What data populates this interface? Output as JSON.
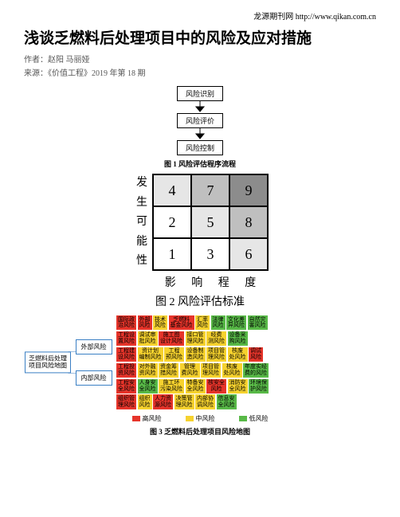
{
  "top_link": "龙源期刊网 http://www.qikan.com.cn",
  "title": "浅谈乏燃料后处理项目中的风险及应对措施",
  "author_line": "作者：赵阳 马丽娅",
  "source_line": "来源：《价值工程》2019 年第 18 期",
  "fig1": {
    "boxes": [
      "风险识别",
      "风险评价",
      "风险控制"
    ],
    "caption": "图 1 风险评估程序流程"
  },
  "fig2": {
    "ylabel": [
      "发",
      "生",
      "可",
      "能",
      "性"
    ],
    "xlabel": "影 响 程 度",
    "cells": [
      {
        "v": "4",
        "bg": "#e6e6e6"
      },
      {
        "v": "7",
        "bg": "#bfbfbf"
      },
      {
        "v": "9",
        "bg": "#8c8c8c"
      },
      {
        "v": "2",
        "bg": "#ffffff"
      },
      {
        "v": "5",
        "bg": "#e6e6e6"
      },
      {
        "v": "8",
        "bg": "#bfbfbf"
      },
      {
        "v": "1",
        "bg": "#ffffff"
      },
      {
        "v": "3",
        "bg": "#ffffff"
      },
      {
        "v": "6",
        "bg": "#e6e6e6"
      }
    ],
    "caption": "图 2  风险评估标准"
  },
  "fig3": {
    "root": "乏燃料后处理\n项目风险地图",
    "branches": [
      "外部风险",
      "内部风险"
    ],
    "risk_colors": {
      "hi": "#e6342a",
      "mid": "#f6d22e",
      "low": "#58b947"
    },
    "rows": [
      [
        {
          "t": "国际政\n治风险",
          "c": "hi"
        },
        {
          "t": "外部\n风险",
          "c": "hi"
        },
        {
          "t": "技术\n风险",
          "c": "mid"
        },
        {
          "t": "乏燃料\n基金风险",
          "c": "hi"
        },
        {
          "t": "汇率\n风险",
          "c": "mid"
        },
        {
          "t": "法律\n风险",
          "c": "low"
        },
        {
          "t": "文化差\n异风险",
          "c": "low"
        },
        {
          "t": "自然灾\n害风险",
          "c": "low"
        }
      ],
      [
        {
          "t": "工程设\n置风险",
          "c": "hi"
        },
        {
          "t": "调试审\n批风险",
          "c": "mid"
        },
        {
          "t": "施工图\n设计风险",
          "c": "hi"
        },
        {
          "t": "接口管\n理风险",
          "c": "mid"
        },
        {
          "t": "经费\n测风险",
          "c": "mid"
        },
        {
          "t": "设备采\n购风险",
          "c": "low"
        }
      ],
      [
        {
          "t": "工程建\n设风险",
          "c": "hi"
        },
        {
          "t": "资计划\n编制风险",
          "c": "mid"
        },
        {
          "t": "工程\n预风险",
          "c": "mid"
        },
        {
          "t": "设备制\n造风险",
          "c": "mid"
        },
        {
          "t": "项目管\n理风险",
          "c": "mid"
        },
        {
          "t": "核废\n处风险",
          "c": "mid"
        },
        {
          "t": "调试\n风险",
          "c": "hi"
        }
      ],
      [
        {
          "t": "工程投\n资风险",
          "c": "hi"
        },
        {
          "t": "对外融\n资风险",
          "c": "mid"
        },
        {
          "t": "资金筹\n措风险",
          "c": "mid"
        },
        {
          "t": "管理\n费风险",
          "c": "mid"
        },
        {
          "t": "项目管\n理风险",
          "c": "mid"
        },
        {
          "t": "核废\n处风险",
          "c": "mid"
        },
        {
          "t": "年度实经\n费的风险",
          "c": "low"
        }
      ],
      [
        {
          "t": "工程安\n全风险",
          "c": "hi"
        },
        {
          "t": "人身安\n全风险",
          "c": "low"
        },
        {
          "t": "施工环\n污染风险",
          "c": "mid"
        },
        {
          "t": "特备安\n全风险",
          "c": "mid"
        },
        {
          "t": "核安全\n风险",
          "c": "hi"
        },
        {
          "t": "消防安\n全风险",
          "c": "mid"
        },
        {
          "t": "环境保\n护风险",
          "c": "low"
        }
      ],
      [
        {
          "t": "组织管\n理风险",
          "c": "hi"
        },
        {
          "t": "组织\n风险",
          "c": "mid"
        },
        {
          "t": "人力资\n源风险",
          "c": "hi"
        },
        {
          "t": "决策管\n理风险",
          "c": "mid"
        },
        {
          "t": "内部协\n调风险",
          "c": "mid"
        },
        {
          "t": "信息安\n全风险",
          "c": "low"
        }
      ]
    ],
    "legend": [
      {
        "label": "高风险",
        "c": "hi"
      },
      {
        "label": "中风险",
        "c": "mid"
      },
      {
        "label": "低风险",
        "c": "low"
      }
    ],
    "caption": "图 3 乏燃料后处理项目风险地图"
  }
}
